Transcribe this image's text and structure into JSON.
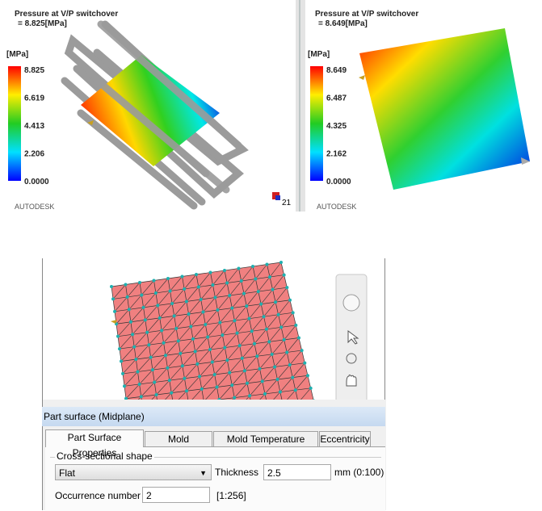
{
  "left_view": {
    "title": "Pressure at V/P switchover",
    "value": "= 8.825[MPa]",
    "unit": "[MPa]",
    "scale": [
      "8.825",
      "6.619",
      "4.413",
      "2.206",
      "0.0000"
    ],
    "brand": "AUTODESK",
    "triad_label": "21"
  },
  "right_view": {
    "title": "Pressure at V/P switchover",
    "value": "= 8.649[MPa]",
    "unit": "[MPa]",
    "scale": [
      "8.649",
      "6.487",
      "4.325",
      "2.162",
      "0.0000"
    ],
    "brand": "AUTODESK"
  },
  "dialog": {
    "title": "Part surface (Midplane)",
    "tabs": [
      "Part Surface Properties",
      "Mold Properties",
      "Mold Temperature Profile",
      "Eccentricity"
    ],
    "group": "Cross-sectional shape",
    "shape": "Flat",
    "thickness_label": "Thickness",
    "thickness": "2.5",
    "thickness_range": "mm (0:100)",
    "occurrence_label": "Occurrence number",
    "occurrence": "2",
    "occurrence_range": "[1:256]"
  }
}
